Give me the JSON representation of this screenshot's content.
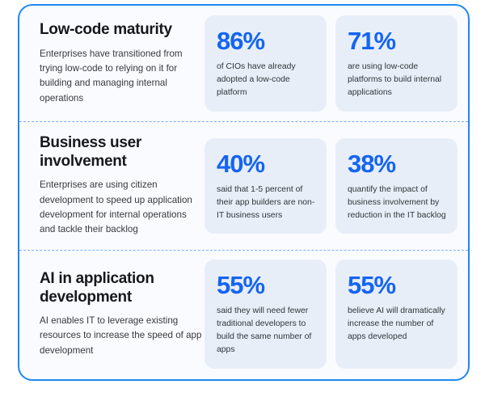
{
  "colors": {
    "accent_blue": "#1465f0",
    "card_border_blue": "#1e87f2",
    "divider_blue": "#7aaef2",
    "stat_box_background": "#e8eef8",
    "card_background": "#fafbfe",
    "heading_text": "#16181d",
    "body_text": "#36393f"
  },
  "sections": [
    {
      "title": "Low-code maturity",
      "description": "Enterprises have transitioned from trying low-code to relying on it for building and managing internal operations",
      "stats": [
        {
          "value": "86%",
          "label": "of CIOs have already adopted a low-code platform"
        },
        {
          "value": "71%",
          "label": "are using low-code platforms to build internal applications"
        }
      ]
    },
    {
      "title": "Business user involvement",
      "description": "Enterprises are using citizen development to speed up application development for internal operations and tackle their backlog",
      "stats": [
        {
          "value": "40%",
          "label": "said that 1-5 percent of their app builders are non-IT business users"
        },
        {
          "value": "38%",
          "label": "quantify the impact of business involvement by reduction in the IT backlog"
        }
      ]
    },
    {
      "title": "AI in application development",
      "description": "AI enables IT to leverage existing resources to increase the speed of app development",
      "stats": [
        {
          "value": "55%",
          "label": "said they will need fewer traditional developers to build the same number of apps"
        },
        {
          "value": "55%",
          "label": "believe AI will dramatically increase the number of apps developed"
        }
      ]
    }
  ]
}
